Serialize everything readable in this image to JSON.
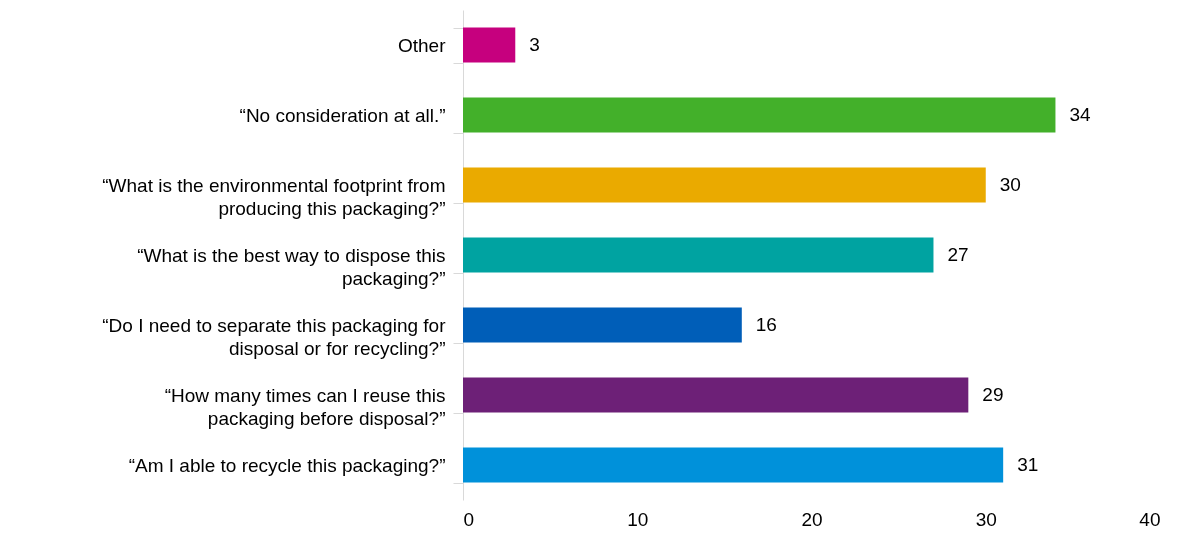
{
  "chart_data": {
    "type": "bar",
    "orientation": "horizontal",
    "categories": [
      "Other",
      "“No consideration at all.”",
      "“What is the environmental footprint from producing this packaging?”",
      "“What is the best way to dispose this packaging?”",
      "“Do I need to separate this packaging for disposal or for recycling?”",
      "“How many times can I reuse this packaging before disposal?”",
      "“Am I able to recycle this packaging?”"
    ],
    "values": [
      3,
      34,
      30,
      27,
      16,
      29,
      31
    ],
    "colors": [
      "#c6007e",
      "#43b02a",
      "#eaaa00",
      "#00a3a1",
      "#005eb8",
      "#6d2077",
      "#0091da"
    ],
    "xlim": [
      0,
      40
    ],
    "xticks": [
      0,
      10,
      20,
      30,
      40
    ],
    "data_labels": true
  }
}
